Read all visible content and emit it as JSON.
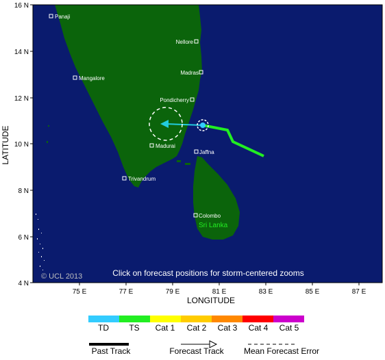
{
  "map": {
    "notice": "Click on forecast positions for storm-centered zooms",
    "copyright": "© UCL 2013",
    "country_label": "Sri Lanka",
    "x_axis": {
      "title": "LONGITUDE",
      "ticks": [
        "75 E",
        "77 E",
        "79 E",
        "81 E",
        "83 E",
        "85 E",
        "87 E"
      ]
    },
    "y_axis": {
      "title": "LATITUDE",
      "ticks": [
        "4 N",
        "6 N",
        "8 N",
        "10 N",
        "12 N",
        "14 N",
        "16 N"
      ]
    },
    "cities": [
      {
        "name": "Panaji"
      },
      {
        "name": "Nellore"
      },
      {
        "name": "Madras"
      },
      {
        "name": "Mangalore"
      },
      {
        "name": "Pondicherry"
      },
      {
        "name": "Madurai"
      },
      {
        "name": "Jaffna"
      },
      {
        "name": "Trivandrum"
      },
      {
        "name": "Colombo"
      }
    ],
    "colors": {
      "ocean": "#0a1b6e",
      "land": "#0b640b",
      "past_track": "#22ee22",
      "forecast_track": "#22ccdd"
    }
  },
  "legend": {
    "categories": [
      {
        "label": "TD",
        "color": "#33ccff"
      },
      {
        "label": "TS",
        "color": "#22ee22"
      },
      {
        "label": "Cat 1",
        "color": "#ffff00"
      },
      {
        "label": "Cat 2",
        "color": "#ffcc00"
      },
      {
        "label": "Cat 3",
        "color": "#ff8800"
      },
      {
        "label": "Cat 4",
        "color": "#ff0000"
      },
      {
        "label": "Cat 5",
        "color": "#cc00cc"
      }
    ],
    "keys": {
      "past_track": "Past Track",
      "forecast_track": "Forecast Track",
      "mean_error": "Mean Forecast Error"
    }
  }
}
